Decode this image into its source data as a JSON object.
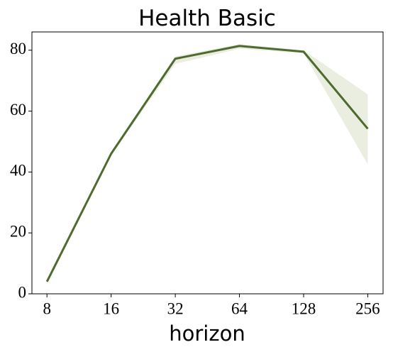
{
  "chart_data": {
    "type": "line",
    "title": "Health Basic",
    "x_label": "horizon",
    "x": [
      8,
      16,
      32,
      64,
      128,
      256
    ],
    "xscale": "log",
    "xlim": [
      6.8,
      302
    ],
    "xticks": [
      8,
      16,
      32,
      64,
      128,
      256
    ],
    "ylim": [
      0,
      86
    ],
    "yticks": [
      0,
      20,
      40,
      60,
      80
    ],
    "grid": false,
    "series": [
      {
        "color": "#4f6a2e",
        "band_color": "#e9eee1",
        "values": [
          4,
          46,
          77.2,
          81.4,
          79.5,
          54.2
        ],
        "lower": [
          3.5,
          45.5,
          75.5,
          80.5,
          79,
          42.5
        ],
        "upper": [
          4.5,
          46.5,
          78,
          82,
          80,
          65.5
        ]
      }
    ]
  }
}
